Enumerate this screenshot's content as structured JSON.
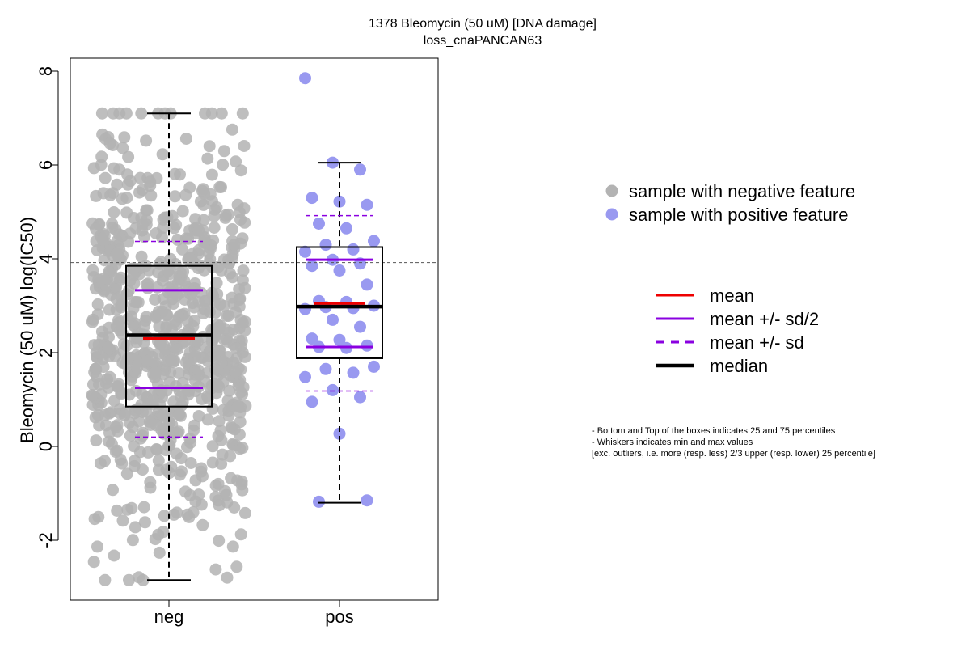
{
  "chart_data": {
    "type": "box",
    "title": "1378 Bleomycin (50 uM) [DNA damage]",
    "subtitle": "loss_cnaPANCAN63",
    "ylabel": "Bleomycin (50 uM) log(IC50)",
    "xlabel": "",
    "ylim": [
      -3.3,
      8.3
    ],
    "yticks": [
      -2,
      0,
      2,
      4,
      6,
      8
    ],
    "categories": [
      "neg",
      "pos"
    ],
    "reference_line": 3.92,
    "groups": [
      {
        "name": "neg",
        "point_label": "sample with negative feature",
        "color": "#b3b3b3",
        "min": -2.85,
        "q1": 0.85,
        "median": 2.37,
        "q3": 3.85,
        "max": 7.1,
        "mean": 2.3,
        "mean_minus_half_sd": 1.25,
        "mean_plus_half_sd": 3.33,
        "mean_minus_sd": 0.2,
        "mean_plus_sd": 4.37,
        "n_points": 780
      },
      {
        "name": "pos",
        "point_label": "sample with positive feature",
        "color": "#9999f0",
        "min": -1.2,
        "q1": 1.88,
        "median": 2.98,
        "q3": 4.25,
        "max": 6.05,
        "mean": 3.05,
        "mean_minus_half_sd": 2.12,
        "mean_plus_half_sd": 3.98,
        "mean_minus_sd": 1.18,
        "mean_plus_sd": 4.92,
        "points": [
          7.85,
          6.05,
          5.9,
          5.3,
          5.22,
          5.15,
          4.75,
          4.65,
          4.38,
          4.3,
          4.2,
          4.15,
          3.98,
          3.9,
          3.85,
          3.75,
          3.45,
          3.1,
          3.08,
          3.0,
          2.97,
          2.95,
          2.93,
          2.7,
          2.55,
          2.3,
          2.27,
          2.15,
          2.12,
          2.1,
          1.7,
          1.65,
          1.57,
          1.48,
          1.2,
          1.05,
          0.95,
          0.27,
          -1.15,
          -1.18
        ]
      }
    ],
    "legend": {
      "position": "right",
      "points": [
        "sample with negative feature",
        "sample with positive feature"
      ],
      "lines": [
        {
          "label": "mean",
          "color": "#ee0000",
          "style": "solid"
        },
        {
          "label": "mean +/- sd/2",
          "color": "#8a00e0",
          "style": "solid"
        },
        {
          "label": "mean +/- sd",
          "color": "#8a00e0",
          "style": "dashed"
        },
        {
          "label": "median",
          "color": "#000000",
          "style": "solid"
        }
      ]
    },
    "notes": [
      "- Bottom and Top of the boxes indicates 25 and 75 percentiles",
      "- Whiskers indicates min and max values",
      "[exc. outliers, i.e. more (resp. less) 2/3 upper (resp. lower) 25 percentile]"
    ]
  }
}
